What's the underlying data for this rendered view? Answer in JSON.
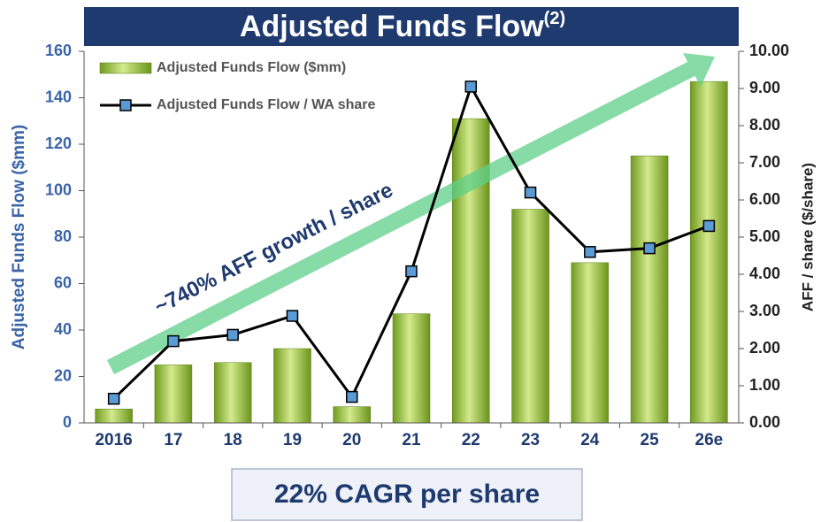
{
  "chart_data": {
    "type": "bar_line",
    "title": "Adjusted Funds Flow",
    "title_note": "(2)",
    "categories": [
      "2016",
      "17",
      "18",
      "19",
      "20",
      "21",
      "22",
      "23",
      "24",
      "25",
      "26e"
    ],
    "series": [
      {
        "name": "Adjusted Funds Flow ($mm)",
        "type": "bar",
        "color": "#8db53a",
        "values": [
          6,
          25,
          26,
          32,
          7,
          47,
          131,
          92,
          69,
          115,
          147
        ]
      },
      {
        "name": "Adjusted Funds Flow / WA share",
        "type": "line",
        "axis": "y2",
        "color": "#000000",
        "marker_color": "#5b9bd5",
        "values": [
          0.65,
          2.2,
          2.37,
          2.88,
          0.7,
          4.08,
          9.05,
          6.2,
          4.6,
          4.7,
          5.3
        ]
      }
    ],
    "ylabel": "Adjusted Funds Flow ($mm)",
    "y2label": "AFF / share ($/share)",
    "ylim": [
      0,
      160
    ],
    "yticks": [
      0,
      20,
      40,
      60,
      80,
      100,
      120,
      140,
      160
    ],
    "y2lim": [
      0,
      10
    ],
    "y2ticks": [
      {
        "value": 0,
        "label": "0.00"
      },
      {
        "value": 1,
        "label": "1.00"
      },
      {
        "value": 2,
        "label": "2.00"
      },
      {
        "value": 3,
        "label": "3.00"
      },
      {
        "value": 4,
        "label": "4.00"
      },
      {
        "value": 5,
        "label": "5.00"
      },
      {
        "value": 6,
        "label": "6.00"
      },
      {
        "value": 7,
        "label": "7.00"
      },
      {
        "value": 8,
        "label": "8.00"
      },
      {
        "value": 9,
        "label": "9.00"
      },
      {
        "value": 10,
        "label": "10.00"
      }
    ],
    "legend": "upper left",
    "annotation": "~740% AFF growth / share",
    "callout": "22% CAGR per share"
  }
}
